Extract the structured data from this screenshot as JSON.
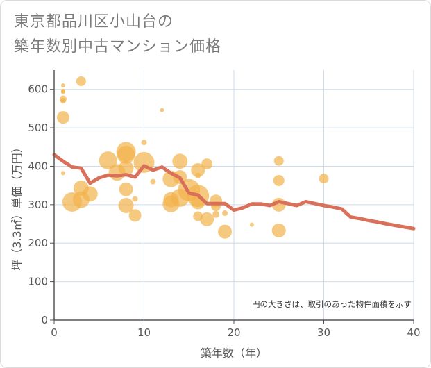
{
  "title_lines": [
    "東京都品川区小山台の",
    "築年数別中古マンション価格"
  ],
  "colors": {
    "bubble": "#f2b24a",
    "line": "#d9705a",
    "grid": "#cfdbe6",
    "axis": "#555555"
  },
  "chart_data": {
    "type": "scatter",
    "title": "東京都品川区小山台の築年数別中古マンション価格",
    "xlabel": "築年数（年）",
    "ylabel": "坪（3.3㎡）単価（万円）",
    "xlim": [
      0,
      40
    ],
    "ylim": [
      0,
      650
    ],
    "xticks": [
      0,
      10,
      20,
      30,
      40
    ],
    "yticks": [
      0,
      100,
      200,
      300,
      400,
      500,
      600
    ],
    "grid": true,
    "annotation": "円の大きさは、取引のあった物件面積を示す",
    "bubbles": [
      {
        "x": 1,
        "y": 610,
        "size": 3
      },
      {
        "x": 1,
        "y": 596,
        "size": 3
      },
      {
        "x": 1,
        "y": 593,
        "size": 3
      },
      {
        "x": 1,
        "y": 575,
        "size": 5
      },
      {
        "x": 1,
        "y": 570,
        "size": 4
      },
      {
        "x": 1,
        "y": 527,
        "size": 9
      },
      {
        "x": 1,
        "y": 382,
        "size": 3
      },
      {
        "x": 3,
        "y": 621,
        "size": 7
      },
      {
        "x": 2,
        "y": 307,
        "size": 14
      },
      {
        "x": 3,
        "y": 313,
        "size": 12
      },
      {
        "x": 3,
        "y": 343,
        "size": 11
      },
      {
        "x": 4,
        "y": 328,
        "size": 11
      },
      {
        "x": 6,
        "y": 415,
        "size": 13
      },
      {
        "x": 7,
        "y": 384,
        "size": 12
      },
      {
        "x": 8,
        "y": 438,
        "size": 14
      },
      {
        "x": 8,
        "y": 430,
        "size": 13
      },
      {
        "x": 8,
        "y": 395,
        "size": 11
      },
      {
        "x": 8,
        "y": 340,
        "size": 10
      },
      {
        "x": 8,
        "y": 298,
        "size": 11
      },
      {
        "x": 9,
        "y": 315,
        "size": 4
      },
      {
        "x": 9,
        "y": 272,
        "size": 9
      },
      {
        "x": 10,
        "y": 462,
        "size": 4
      },
      {
        "x": 10,
        "y": 410,
        "size": 15
      },
      {
        "x": 11,
        "y": 360,
        "size": 4
      },
      {
        "x": 12,
        "y": 546,
        "size": 3
      },
      {
        "x": 13,
        "y": 367,
        "size": 12
      },
      {
        "x": 13,
        "y": 313,
        "size": 11
      },
      {
        "x": 13,
        "y": 302,
        "size": 12
      },
      {
        "x": 14,
        "y": 413,
        "size": 11
      },
      {
        "x": 14,
        "y": 372,
        "size": 10
      },
      {
        "x": 14,
        "y": 318,
        "size": 13
      },
      {
        "x": 15,
        "y": 338,
        "size": 16
      },
      {
        "x": 16,
        "y": 390,
        "size": 10
      },
      {
        "x": 16,
        "y": 376,
        "size": 4
      },
      {
        "x": 16,
        "y": 323,
        "size": 16
      },
      {
        "x": 16,
        "y": 306,
        "size": 10
      },
      {
        "x": 16,
        "y": 270,
        "size": 7
      },
      {
        "x": 17,
        "y": 406,
        "size": 8
      },
      {
        "x": 17,
        "y": 262,
        "size": 10
      },
      {
        "x": 18,
        "y": 310,
        "size": 9
      },
      {
        "x": 18,
        "y": 296,
        "size": 7
      },
      {
        "x": 18,
        "y": 275,
        "size": 5
      },
      {
        "x": 19,
        "y": 278,
        "size": 4
      },
      {
        "x": 19,
        "y": 230,
        "size": 10
      },
      {
        "x": 22,
        "y": 248,
        "size": 3
      },
      {
        "x": 25,
        "y": 414,
        "size": 7
      },
      {
        "x": 25,
        "y": 363,
        "size": 8
      },
      {
        "x": 25,
        "y": 300,
        "size": 10
      },
      {
        "x": 25,
        "y": 233,
        "size": 10
      },
      {
        "x": 30,
        "y": 368,
        "size": 7
      }
    ],
    "series": [
      {
        "type": "line",
        "x": [
          0,
          1,
          2,
          3,
          4,
          5,
          6,
          7,
          8,
          9,
          10,
          11,
          12,
          13,
          14,
          15,
          16,
          17,
          18,
          19,
          20,
          21,
          22,
          23,
          24,
          25,
          26,
          27,
          28,
          29,
          30,
          31,
          32,
          33,
          34,
          35,
          36,
          37,
          38,
          39,
          40
        ],
        "values": [
          430,
          413,
          398,
          395,
          356,
          370,
          377,
          375,
          378,
          372,
          401,
          390,
          398,
          382,
          370,
          330,
          325,
          303,
          303,
          303,
          286,
          292,
          302,
          302,
          298,
          308,
          303,
          298,
          308,
          303,
          298,
          294,
          289,
          268,
          264,
          259,
          255,
          250,
          246,
          242,
          238
        ]
      }
    ]
  }
}
